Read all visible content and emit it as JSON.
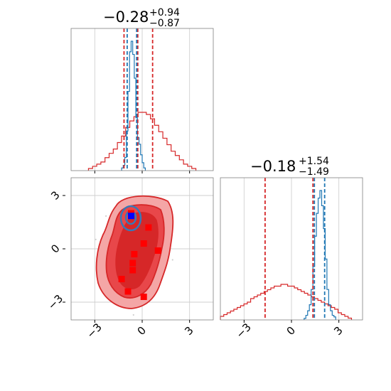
{
  "chart_data": [
    {
      "type": "histogram",
      "panel": "top-left",
      "title": {
        "value": "−0.28",
        "upper": "+0.94",
        "lower": "−0.87"
      },
      "xlim": [
        -4.5,
        4.5
      ],
      "grid": true,
      "colors": {
        "red": "#d62728",
        "blue": "#1f77b4"
      },
      "red_quantiles": [
        -1.15,
        -0.28,
        0.66
      ],
      "blue_quantiles": [
        -0.95,
        -0.35
      ],
      "red_hist": {
        "x_range": [
          -3.4,
          3.4
        ],
        "counts": [
          1,
          2,
          3,
          4,
          6,
          8,
          10,
          13,
          16,
          20,
          23,
          25,
          27,
          27,
          26,
          24,
          21,
          18,
          15,
          12,
          9,
          7,
          5,
          3,
          2,
          1
        ]
      },
      "blue_hist": {
        "x_range": [
          -1.3,
          0.2
        ],
        "counts": [
          2,
          4,
          10,
          30,
          60,
          90,
          98,
          88,
          70,
          40,
          25,
          20,
          12,
          6,
          2
        ]
      }
    },
    {
      "type": "scatter",
      "panel": "bottom-left",
      "xlim": [
        -4.5,
        4.5
      ],
      "ylim": [
        -4,
        4
      ],
      "xticks": [
        -3,
        0,
        3
      ],
      "yticks": [
        -3,
        0,
        3
      ],
      "grid": true,
      "red_points": [
        {
          "x": -0.7,
          "y": 2.0
        },
        {
          "x": 0.4,
          "y": 1.2
        },
        {
          "x": 0.1,
          "y": 0.3
        },
        {
          "x": 1.0,
          "y": -0.1
        },
        {
          "x": -0.5,
          "y": -0.3
        },
        {
          "x": -0.6,
          "y": -0.8
        },
        {
          "x": -0.6,
          "y": -1.2
        },
        {
          "x": -1.3,
          "y": -1.7
        },
        {
          "x": -0.9,
          "y": -2.4
        },
        {
          "x": 0.1,
          "y": -2.7
        }
      ],
      "blue_point": {
        "x": -0.7,
        "y": 1.85
      }
    },
    {
      "type": "histogram",
      "panel": "bottom-right",
      "title": {
        "value": "−0.18",
        "upper": "+1.54",
        "lower": "−1.49"
      },
      "xlim": [
        -4.5,
        4.5
      ],
      "xticks": [
        -3,
        0,
        3
      ],
      "grid": true,
      "red_quantiles": [
        -1.67,
        1.36
      ],
      "blue_quantiles": [
        1.45,
        2.1
      ],
      "red_hist": {
        "x_range": [
          -4.5,
          3.8
        ],
        "counts": [
          2,
          3,
          4,
          5,
          6,
          7,
          8,
          9,
          10,
          12,
          13,
          14,
          15,
          16,
          17,
          18,
          19,
          19,
          20,
          20,
          19,
          19,
          18,
          17,
          16,
          15,
          14,
          13,
          12,
          11,
          10,
          9,
          8,
          7,
          6,
          4,
          3,
          2,
          1
        ]
      },
      "blue_hist": {
        "x_range": [
          0.8,
          2.8
        ],
        "counts": [
          1,
          3,
          6,
          10,
          20,
          35,
          55,
          70,
          80,
          85,
          75,
          60,
          40,
          20,
          10,
          6,
          3,
          2
        ]
      }
    }
  ]
}
